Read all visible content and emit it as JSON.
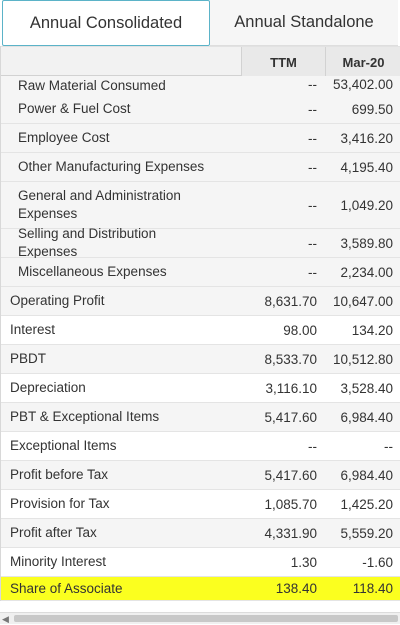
{
  "tabs": [
    {
      "label": "Annual Consolidated",
      "active": true
    },
    {
      "label": "Annual Standalone",
      "active": false
    }
  ],
  "columns": [
    "TTM",
    "Mar-20"
  ],
  "rows": [
    {
      "label": "Raw Material Consumed",
      "ttm": "--",
      "mar20": "53,402.00",
      "type": "sub",
      "partial": true
    },
    {
      "label": "Power & Fuel Cost",
      "ttm": "--",
      "mar20": "699.50",
      "type": "sub"
    },
    {
      "label": "Employee Cost",
      "ttm": "--",
      "mar20": "3,416.20",
      "type": "sub"
    },
    {
      "label": "Other Manufacturing Expenses",
      "ttm": "--",
      "mar20": "4,195.40",
      "type": "sub"
    },
    {
      "label": "General and Administration Expenses",
      "ttm": "--",
      "mar20": "1,049.20",
      "type": "sub",
      "tall": true
    },
    {
      "label": "Selling and Distribution Expenses",
      "ttm": "--",
      "mar20": "3,589.80",
      "type": "sub"
    },
    {
      "label": "Miscellaneous Expenses",
      "ttm": "--",
      "mar20": "2,234.00",
      "type": "sub"
    },
    {
      "label": "Operating Profit",
      "ttm": "8,631.70",
      "mar20": "10,647.00",
      "type": "main",
      "alt": true
    },
    {
      "label": "Interest",
      "ttm": "98.00",
      "mar20": "134.20",
      "type": "main"
    },
    {
      "label": "PBDT",
      "ttm": "8,533.70",
      "mar20": "10,512.80",
      "type": "main",
      "alt": true
    },
    {
      "label": "Depreciation",
      "ttm": "3,116.10",
      "mar20": "3,528.40",
      "type": "main"
    },
    {
      "label": "PBT & Exceptional Items",
      "ttm": "5,417.60",
      "mar20": "6,984.40",
      "type": "main",
      "alt": true
    },
    {
      "label": "Exceptional Items",
      "ttm": "--",
      "mar20": "--",
      "type": "main"
    },
    {
      "label": "Profit before Tax",
      "ttm": "5,417.60",
      "mar20": "6,984.40",
      "type": "main",
      "alt": true
    },
    {
      "label": "Provision for Tax",
      "ttm": "1,085.70",
      "mar20": "1,425.20",
      "type": "main"
    },
    {
      "label": "Profit after Tax",
      "ttm": "4,331.90",
      "mar20": "5,559.20",
      "type": "main",
      "alt": true
    },
    {
      "label": "Minority Interest",
      "ttm": "1.30",
      "mar20": "-1.60",
      "type": "main"
    },
    {
      "label": "Share of Associate",
      "ttm": "138.40",
      "mar20": "118.40",
      "type": "main",
      "highlight": true
    }
  ],
  "colors": {
    "highlight": "#fbff1f",
    "active_tab_border": "#5bb3c8"
  }
}
